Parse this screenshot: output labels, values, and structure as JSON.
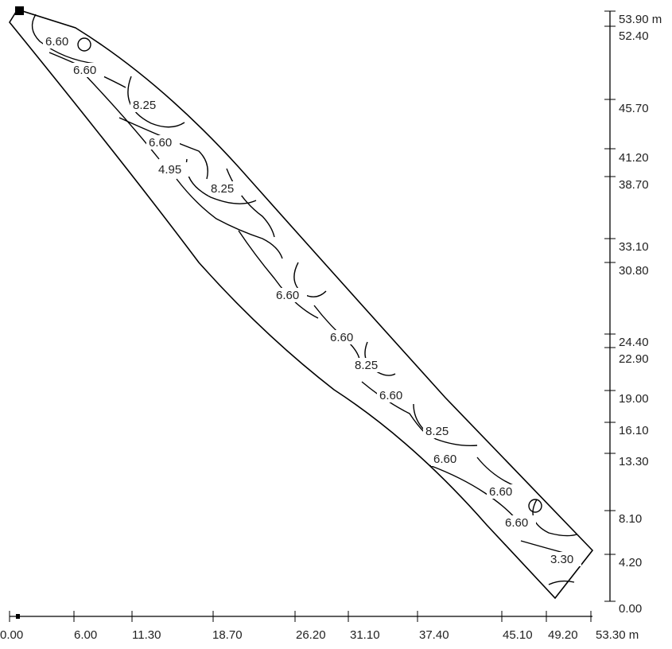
{
  "diagram": {
    "type": "isoline-plan",
    "x_axis": {
      "unit": "m",
      "ticks": [
        "0.00",
        "6.00",
        "11.30",
        "18.70",
        "26.20",
        "31.10",
        "37.40",
        "45.10",
        "49.20",
        "53.30 m"
      ]
    },
    "y_axis": {
      "unit": "m",
      "ticks": [
        "0.00",
        "4.20",
        "8.10",
        "13.30",
        "16.10",
        "19.00",
        "22.90",
        "24.40",
        "30.80",
        "33.10",
        "38.70",
        "41.20",
        "45.70",
        "52.40",
        "53.90 m"
      ]
    },
    "contour_labels": [
      "6.60",
      "6.60",
      "8.25",
      "6.60",
      "4.95",
      "8.25",
      "6.60",
      "6.60",
      "8.25",
      "6.60",
      "8.25",
      "6.60",
      "6.60",
      "6.60",
      "3.30"
    ],
    "marker": "square-marker"
  }
}
